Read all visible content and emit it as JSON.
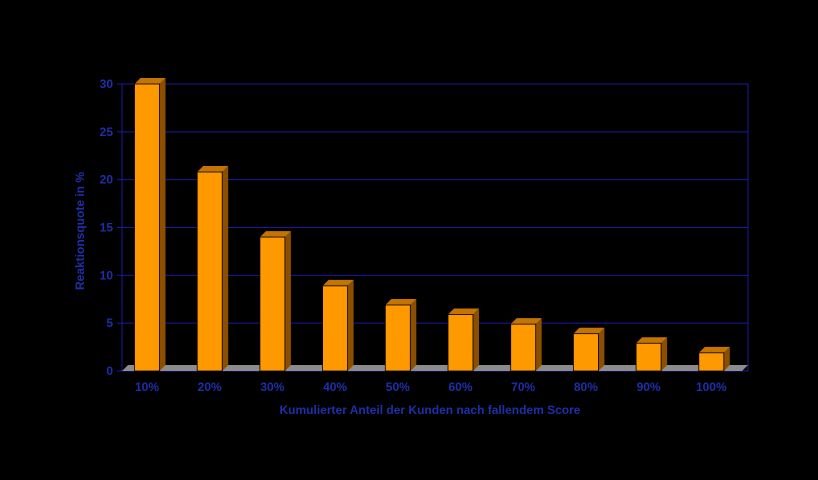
{
  "chart_data": {
    "type": "bar",
    "categories": [
      "10%",
      "20%",
      "30%",
      "40%",
      "50%",
      "60%",
      "70%",
      "80%",
      "90%",
      "100%"
    ],
    "values": [
      30,
      20.8,
      14,
      8.9,
      6.9,
      5.9,
      4.9,
      3.9,
      2.9,
      1.9
    ],
    "xlabel": "Kumulierter Anteil der Kunden nach fallendem Score",
    "ylabel": "Reaktionsquote in %",
    "ylim": [
      0,
      30
    ],
    "yticks": [
      0,
      5,
      10,
      15,
      20,
      25,
      30
    ],
    "grid": true,
    "legend": "none",
    "three_d": true
  },
  "colors": {
    "background": "#000000",
    "axis_text": "#1f2fa8",
    "gridline": "#1a1a9c",
    "bar_front": "#ff9900",
    "bar_side": "#8a4f00",
    "bar_top": "#c47400",
    "floor": "#8c8c8c"
  }
}
